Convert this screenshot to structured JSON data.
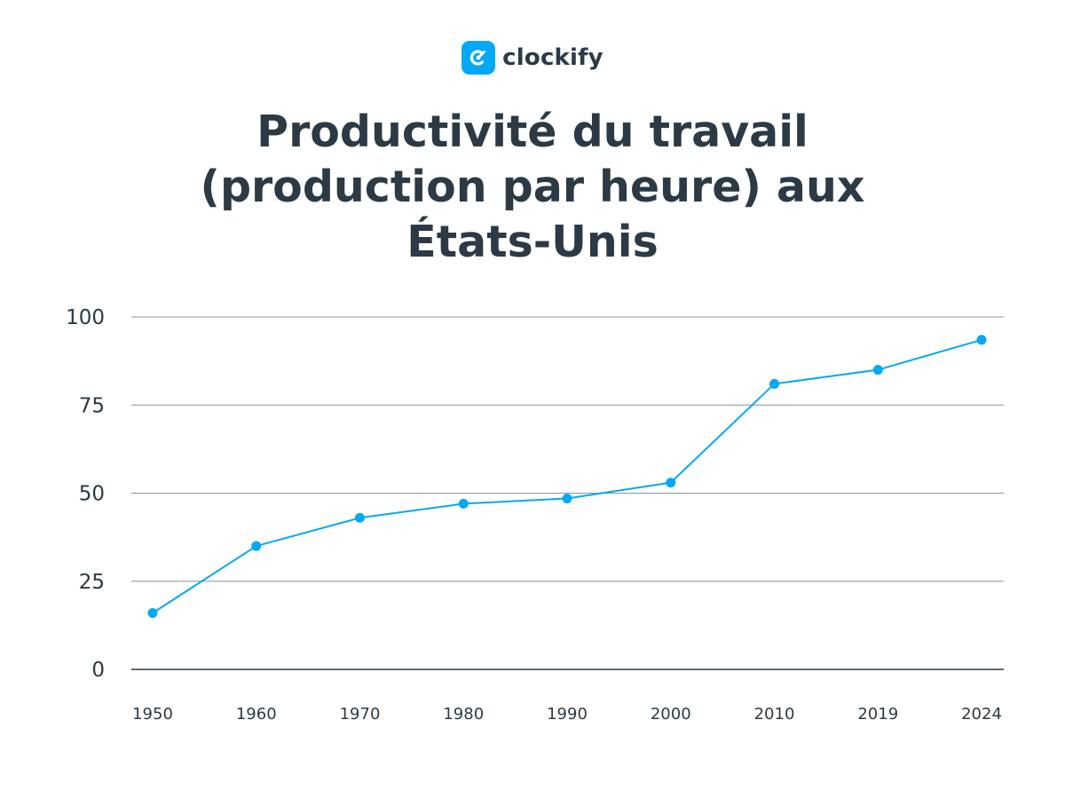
{
  "brand": {
    "name": "clockify",
    "icon": "clockify-logo-icon",
    "color": "#03a9f4"
  },
  "chart_data": {
    "type": "line",
    "title": "Productivité du travail (production par heure) aux États-Unis",
    "title_lines": [
      "Productivité du travail",
      "(production par heure) aux",
      "États-Unis"
    ],
    "xlabel": "",
    "ylabel": "",
    "categories": [
      "1950",
      "1960",
      "1970",
      "1980",
      "1990",
      "2000",
      "2010",
      "2019",
      "2024"
    ],
    "series": [
      {
        "values": [
          16,
          35,
          43,
          47,
          48.5,
          53,
          81,
          85,
          93.5
        ],
        "color": "#03a9f4"
      }
    ],
    "ylim": [
      0,
      100
    ],
    "yticks": [
      "0",
      "25",
      "50",
      "75",
      "100"
    ],
    "grid": true,
    "legend": "none"
  }
}
